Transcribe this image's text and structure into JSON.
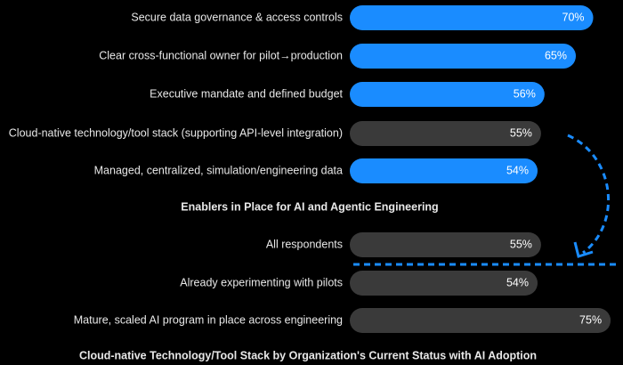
{
  "chart_data": [
    {
      "type": "bar",
      "orientation": "horizontal",
      "title": "Enablers in Place for AI and Agentic Engineering",
      "categories": [
        "Secure data governance & access controls",
        "Clear cross-functional owner for pilot→production",
        "Executive mandate and defined budget",
        "Cloud-native technology/tool stack (supporting API-level integration)",
        "Managed, centralized, simulation/engineering data"
      ],
      "values": [
        70,
        65,
        56,
        55,
        54
      ],
      "value_labels": [
        "70%",
        "65%",
        "56%",
        "55%",
        "54%"
      ],
      "colors": [
        "#1a8cff",
        "#1a8cff",
        "#1a8cff",
        "#3a3a3a",
        "#1a8cff"
      ],
      "xlim": [
        0,
        76
      ]
    },
    {
      "type": "bar",
      "orientation": "horizontal",
      "title": "Cloud-native Technology/Tool Stack by Organization's Current Status with AI Adoption",
      "categories": [
        "All respondents",
        "Already experimenting with pilots",
        "Mature, scaled AI program in place across engineering"
      ],
      "values": [
        55,
        54,
        75
      ],
      "value_labels": [
        "55%",
        "54%",
        "75%"
      ],
      "colors": [
        "#3a3a3a",
        "#3a3a3a",
        "#3a3a3a"
      ],
      "xlim": [
        0,
        76
      ]
    }
  ]
}
